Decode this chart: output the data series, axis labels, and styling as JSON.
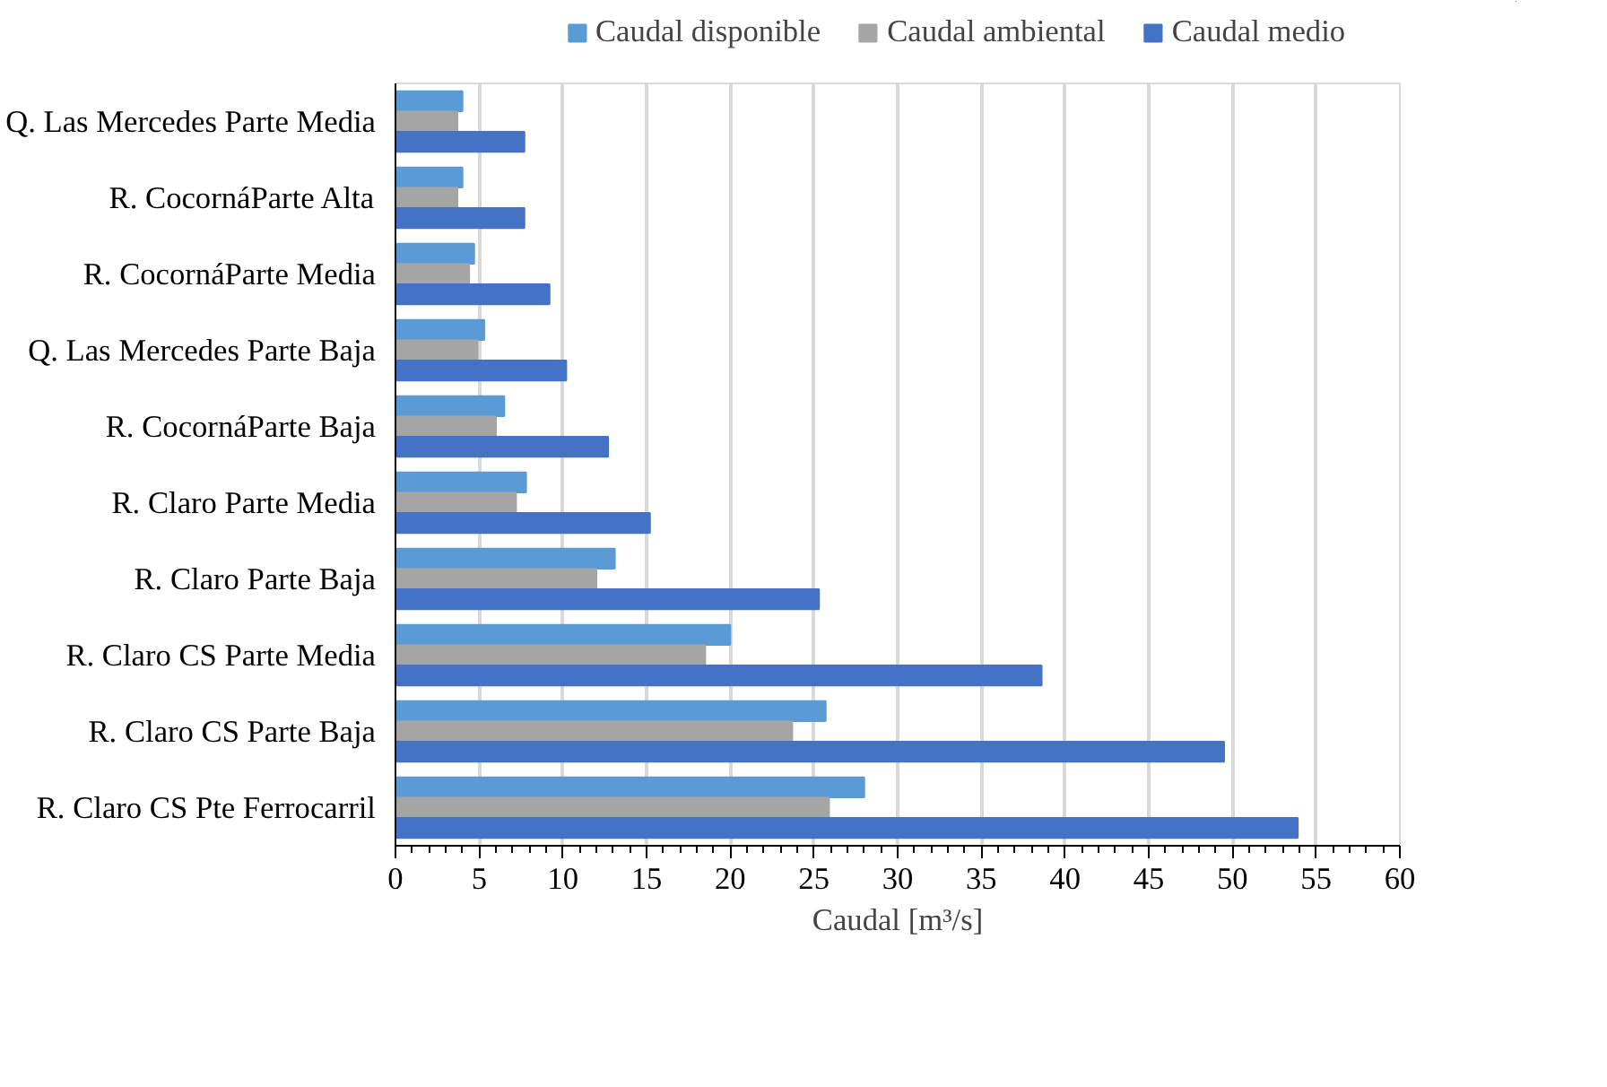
{
  "chart_data": {
    "type": "bar",
    "orientation": "horizontal",
    "categories": [
      "Q. Las Mercedes Parte Media",
      "R. CocornáParte Alta",
      "R. CocornáParte Media",
      "Q. Las Mercedes Parte Baja",
      "R. CocornáParte Baja",
      "R. Claro Parte Media",
      "R. Claro Parte Baja",
      "R. Claro CS Parte Media",
      "R. Claro CS Parte Baja",
      "R. Claro CS Pte Ferrocarril"
    ],
    "series": [
      {
        "name": "Caudal disponible",
        "color": "#5b9bd5",
        "values": [
          4.0,
          4.0,
          4.7,
          5.3,
          6.5,
          7.8,
          13.1,
          20.0,
          25.7,
          28.0
        ]
      },
      {
        "name": "Caudal ambiental",
        "color": "#a5a5a5",
        "values": [
          3.7,
          3.7,
          4.4,
          4.9,
          6.0,
          7.2,
          12.0,
          18.5,
          23.7,
          25.9
        ]
      },
      {
        "name": "Caudal medio",
        "color": "#4472c4",
        "values": [
          7.7,
          7.7,
          9.2,
          10.2,
          12.7,
          15.2,
          25.3,
          38.6,
          49.5,
          53.9
        ]
      }
    ],
    "xlabel": "Caudal [m³/s]",
    "xlim": [
      0,
      60
    ],
    "xticks": [
      0,
      5,
      10,
      15,
      20,
      25,
      30,
      35,
      40,
      45,
      50,
      55,
      60
    ],
    "grid": "x",
    "legend": "top"
  }
}
